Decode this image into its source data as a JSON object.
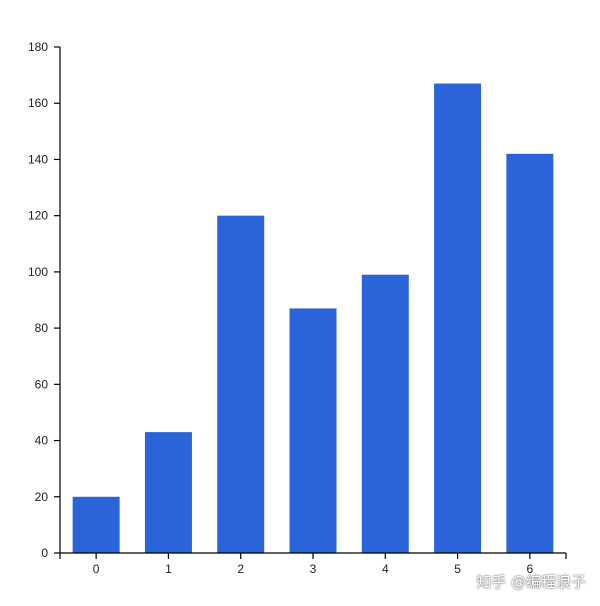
{
  "chart_data": {
    "type": "bar",
    "categories": [
      "0",
      "1",
      "2",
      "3",
      "4",
      "5",
      "6"
    ],
    "values": [
      20,
      43,
      120,
      87,
      99,
      167,
      142
    ],
    "ylim": [
      0,
      180
    ],
    "yticks": [
      0,
      20,
      40,
      60,
      80,
      100,
      120,
      140,
      160,
      180
    ],
    "grid": false,
    "bar_color": "#2B63D8"
  },
  "watermark": "知乎 @编程浪子"
}
